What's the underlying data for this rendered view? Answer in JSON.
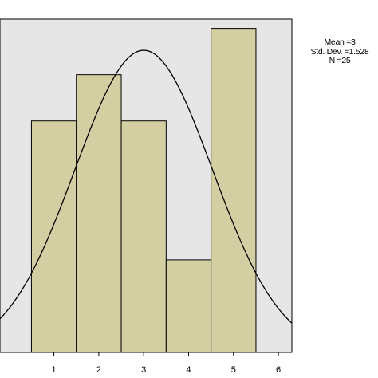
{
  "chart_data": {
    "type": "bar",
    "title": "",
    "xlabel": "",
    "ylabel": "",
    "categories": [
      "1",
      "2",
      "3",
      "4",
      "5"
    ],
    "values": [
      5,
      6,
      5,
      2,
      7
    ],
    "xlim": [
      -0.2,
      6.3
    ],
    "ylim": [
      0,
      7.2
    ],
    "x_ticks": [
      "1",
      "2",
      "3",
      "4",
      "5",
      "6"
    ],
    "normal_curve": {
      "mean": 3,
      "sd": 1.528,
      "n": 25,
      "bin_width": 1
    },
    "grid": false,
    "colors": {
      "bar_fill": "#d4cfa2",
      "bar_edge": "#000000",
      "plot_bg": "#e6e6e6",
      "curve": "#000000"
    },
    "stats": {
      "mean_text": "Mean =3",
      "sd_text": "Std. Dev. =1.528",
      "n_text": "N =25"
    }
  }
}
